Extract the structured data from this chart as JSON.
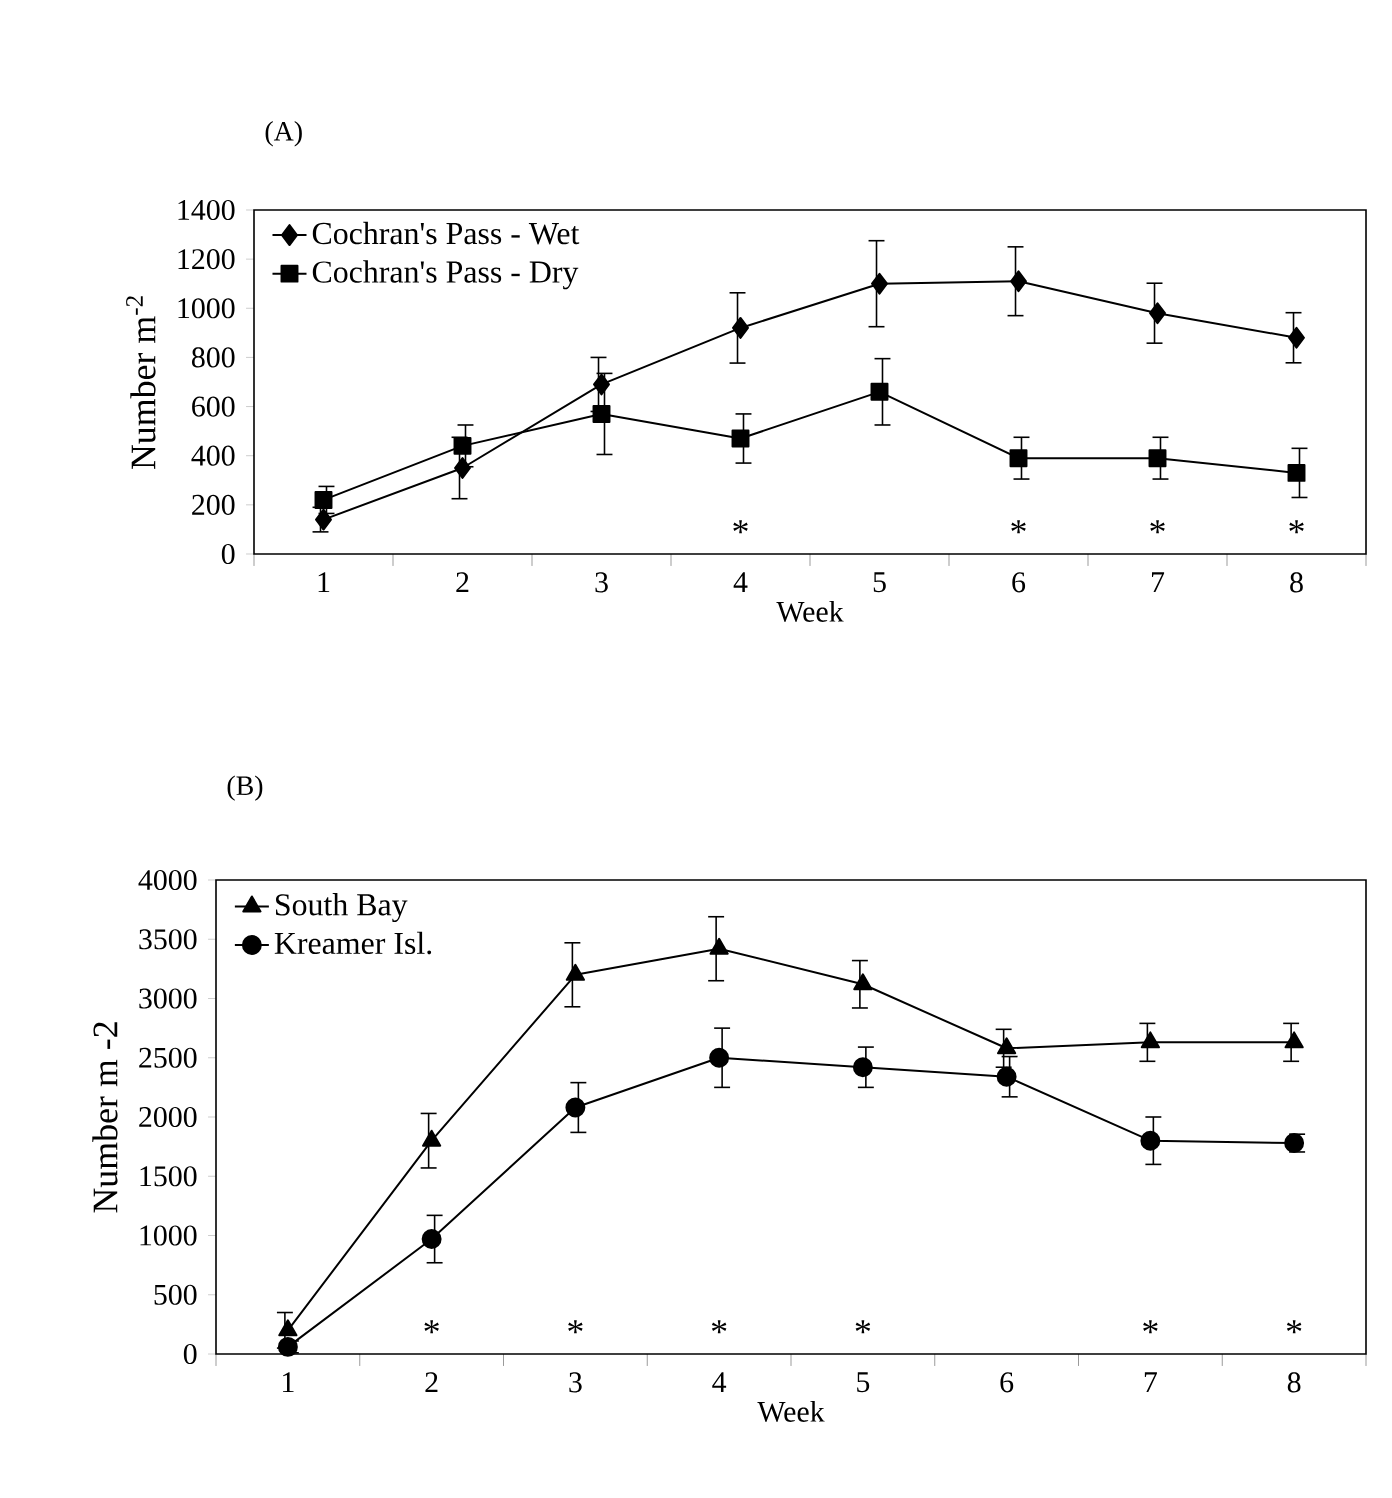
{
  "chart_data": [
    {
      "type": "line",
      "title": "(A)",
      "xlabel": "Week",
      "ylabel": "Number m$^{-2}$",
      "categories": [
        "1",
        "2",
        "3",
        "4",
        "5",
        "6",
        "7",
        "8"
      ],
      "ylim": [
        0,
        1400
      ],
      "yticks": [
        0,
        200,
        400,
        600,
        800,
        1000,
        1200,
        1400
      ],
      "legend": "top left",
      "line_style": "solid",
      "series": [
        {
          "name": "Cochran's Pass - Wet",
          "color": "#000000",
          "marker": "diamond",
          "values": [
            140,
            350,
            690,
            920,
            1100,
            1110,
            980,
            880
          ],
          "errors": [
            50,
            125,
            110,
            143,
            175,
            140,
            122,
            102
          ]
        },
        {
          "name": "Cochran's Pass - Dry",
          "color": "#000000",
          "marker": "square",
          "values": [
            220,
            440,
            570,
            470,
            660,
            390,
            390,
            330
          ],
          "errors": [
            55,
            85,
            165,
            100,
            135,
            85,
            85,
            100
          ]
        }
      ],
      "annotations": [
        "*",
        "*",
        "*",
        "*"
      ]
    },
    {
      "type": "line",
      "title": "(B)",
      "xlabel": "Week",
      "ylabel": "Number m -2",
      "categories": [
        "1",
        "2",
        "3",
        "4",
        "5",
        "6",
        "7",
        "8"
      ],
      "ylim": [
        0,
        4000
      ],
      "yticks": [
        0,
        500,
        1000,
        1500,
        2000,
        2500,
        3000,
        3500,
        4000
      ],
      "legend": "top left",
      "line_style": "solid",
      "series": [
        {
          "name": "South Bay",
          "color": "#000000",
          "marker": "triangle",
          "values": [
            200,
            1800,
            3200,
            3420,
            3120,
            2580,
            2630,
            2630
          ],
          "errors": [
            150,
            230,
            270,
            270,
            200,
            160,
            160,
            160
          ]
        },
        {
          "name": "Kreamer Isl.",
          "color": "#000000",
          "marker": "circle",
          "values": [
            60,
            970,
            2080,
            2500,
            2420,
            2340,
            1800,
            1780
          ],
          "errors": [
            50,
            200,
            210,
            250,
            170,
            170,
            200,
            75
          ]
        }
      ],
      "annotations": [
        "*",
        "*",
        "*",
        "*",
        "*",
        "*"
      ]
    }
  ]
}
